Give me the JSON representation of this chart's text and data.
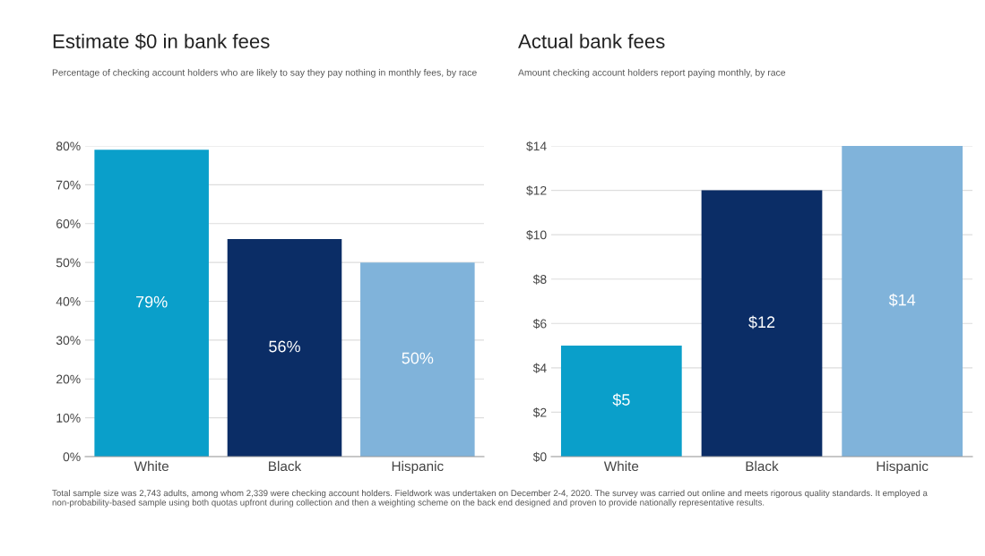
{
  "chart_data": [
    {
      "type": "bar",
      "title": "Estimate $0 in bank fees",
      "subtitle": "Percentage of checking account holders who are likely to say they pay nothing in monthly fees, by race",
      "categories": [
        "White",
        "Black",
        "Hispanic"
      ],
      "values": [
        79,
        56,
        50
      ],
      "colors": [
        "#0a9fca",
        "#0b2d66",
        "#80b3da"
      ],
      "value_labels": [
        "79%",
        "56%",
        "50%"
      ],
      "ylim": [
        0,
        80
      ],
      "yticks": [
        {
          "value": 0,
          "label": "0%"
        },
        {
          "value": 10,
          "label": "10%"
        },
        {
          "value": 20,
          "label": "20%"
        },
        {
          "value": 30,
          "label": "30%"
        },
        {
          "value": 40,
          "label": "40%"
        },
        {
          "value": 50,
          "label": "50%"
        },
        {
          "value": 60,
          "label": "60%"
        },
        {
          "value": 70,
          "label": "70%"
        },
        {
          "value": 80,
          "label": "80%"
        }
      ],
      "grid": "y"
    },
    {
      "type": "bar",
      "title": "Actual bank fees",
      "subtitle": "Amount checking account holders report paying monthly, by race",
      "categories": [
        "White",
        "Black",
        "Hispanic"
      ],
      "values": [
        5,
        12,
        14
      ],
      "colors": [
        "#0a9fca",
        "#0b2d66",
        "#80b3da"
      ],
      "value_labels": [
        "$5",
        "$12",
        "$14"
      ],
      "ylim": [
        0,
        14
      ],
      "yticks": [
        {
          "value": 0,
          "label": "$0"
        },
        {
          "value": 2,
          "label": "$2"
        },
        {
          "value": 4,
          "label": "$4"
        },
        {
          "value": 6,
          "label": "$6"
        },
        {
          "value": 8,
          "label": "$8"
        },
        {
          "value": 10,
          "label": "$10"
        },
        {
          "value": 12,
          "label": "$12"
        },
        {
          "value": 14,
          "label": "$14"
        }
      ],
      "grid": "y",
      "annotations": [
        "Total sample size was 2,743 adults, among whom 2,339 were checking account holders. Fieldwork was undertaken on December 2-4, 2020. The survey was carried out online and meets rigorous quality standards. It employed a non-probability-based sample using both quotas upfront during collection and then a weighting scheme on the back end designed and proven to provide nationally representative results."
      ]
    }
  ]
}
